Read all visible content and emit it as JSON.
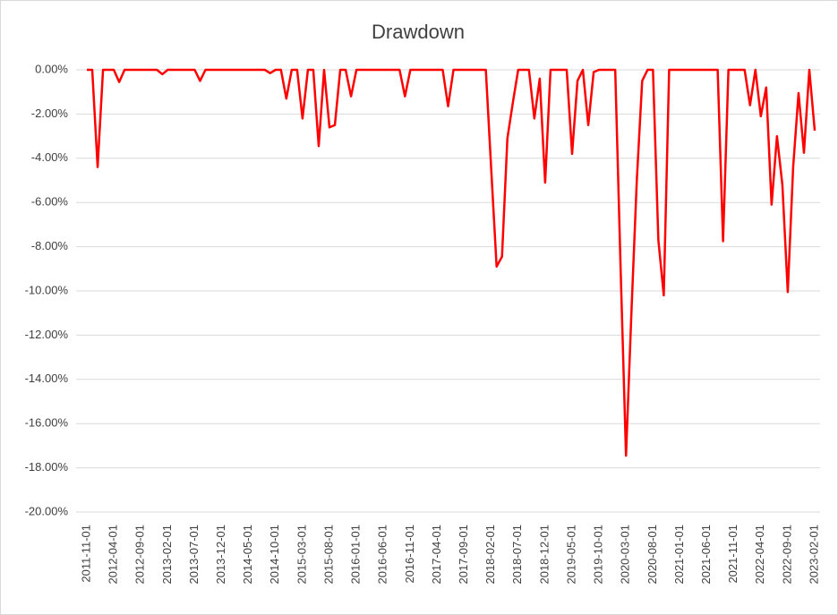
{
  "chart_data": {
    "type": "line",
    "title": "Drawdown",
    "categories": [
      "2011-11-01",
      null,
      null,
      null,
      null,
      "2012-04-01",
      null,
      null,
      null,
      null,
      "2012-09-01",
      null,
      null,
      null,
      null,
      "2013-02-01",
      null,
      null,
      null,
      null,
      "2013-07-01",
      null,
      null,
      null,
      null,
      "2013-12-01",
      null,
      null,
      null,
      null,
      "2014-05-01",
      null,
      null,
      null,
      null,
      "2014-10-01",
      null,
      null,
      null,
      null,
      "2015-03-01",
      null,
      null,
      null,
      null,
      "2015-08-01",
      null,
      null,
      null,
      null,
      "2016-01-01",
      null,
      null,
      null,
      null,
      "2016-06-01",
      null,
      null,
      null,
      null,
      "2016-11-01",
      null,
      null,
      null,
      null,
      "2017-04-01",
      null,
      null,
      null,
      null,
      "2017-09-01",
      null,
      null,
      null,
      null,
      "2018-02-01",
      null,
      null,
      null,
      null,
      "2018-07-01",
      null,
      null,
      null,
      null,
      "2018-12-01",
      null,
      null,
      null,
      null,
      "2019-05-01",
      null,
      null,
      null,
      null,
      "2019-10-01",
      null,
      null,
      null,
      null,
      "2020-03-01",
      null,
      null,
      null,
      null,
      "2020-08-01",
      null,
      null,
      null,
      null,
      "2021-01-01",
      null,
      null,
      null,
      null,
      "2021-06-01",
      null,
      null,
      null,
      null,
      "2021-11-01",
      null,
      null,
      null,
      null,
      "2022-04-01",
      null,
      null,
      null,
      null,
      "2022-09-01",
      null,
      null,
      null,
      null,
      "2023-02-01"
    ],
    "series": [
      {
        "name": "Drawdown",
        "color": "#ff0000",
        "values": [
          0,
          0,
          -4.4,
          0,
          0,
          0,
          -0.55,
          0,
          0,
          0,
          0,
          0,
          0,
          0,
          -0.2,
          0,
          0,
          0,
          0,
          0,
          0,
          -0.5,
          0,
          0,
          0,
          0,
          0,
          0,
          0,
          0,
          0,
          0,
          0,
          0,
          -0.15,
          0,
          0,
          -1.3,
          0,
          0,
          -2.2,
          0,
          0,
          -3.45,
          0,
          -2.6,
          -2.5,
          0,
          0,
          -1.2,
          0,
          0,
          0,
          0,
          0,
          0,
          0,
          0,
          0,
          -1.2,
          0,
          0,
          0,
          0,
          0,
          0,
          0,
          -1.65,
          0,
          0,
          0,
          0,
          0,
          0,
          0,
          -4.5,
          -8.9,
          -8.45,
          -3.1,
          -1.5,
          0,
          0,
          0,
          -2.2,
          -0.4,
          -5.1,
          0,
          0,
          0,
          0,
          -3.8,
          -0.5,
          0,
          -2.5,
          -0.1,
          0,
          0,
          0,
          0,
          -9,
          -17.45,
          -11,
          -5,
          -0.5,
          0,
          0,
          -7.7,
          -10.2,
          0,
          0,
          0,
          0,
          0,
          0,
          0,
          0,
          0,
          0,
          -7.75,
          0,
          0,
          0,
          0,
          -1.6,
          0,
          -2.1,
          -0.8,
          -6.1,
          -3,
          -5.2,
          -10.05,
          -4.4,
          -1.05,
          -3.75,
          0,
          -2.75
        ]
      }
    ],
    "ylim": [
      -20,
      0
    ],
    "yticks": [
      {
        "value": -20,
        "label": "-20.00%"
      },
      {
        "value": -18,
        "label": "-18.00%"
      },
      {
        "value": -16,
        "label": "-16.00%"
      },
      {
        "value": -14,
        "label": "-14.00%"
      },
      {
        "value": -12,
        "label": "-12.00%"
      },
      {
        "value": -10,
        "label": "-10.00%"
      },
      {
        "value": -8,
        "label": "-8.00%"
      },
      {
        "value": -6,
        "label": "-6.00%"
      },
      {
        "value": -4,
        "label": "-4.00%"
      },
      {
        "value": -2,
        "label": "-2.00%"
      },
      {
        "value": 0,
        "label": "0.00%"
      }
    ],
    "grid": true
  }
}
